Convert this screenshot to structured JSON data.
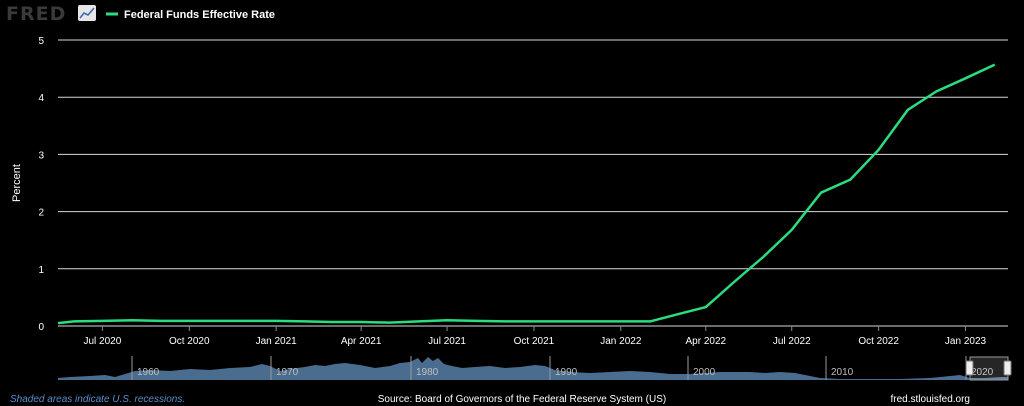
{
  "header": {
    "logo_text": "FRED",
    "logo_icon": "chart-line-icon"
  },
  "legend": {
    "series_name": "Federal Funds Effective Rate"
  },
  "footer": {
    "recession_note": "Shaded areas indicate U.S. recessions.",
    "source": "Source: Board of Governors of the Federal Reserve System (US)",
    "site": "fred.stlouisfed.org"
  },
  "colors": {
    "background": "#000000",
    "series": "#2bdd7e",
    "grid": "#ffffff",
    "navigator_fill": "#4a6d8f",
    "footer_note": "#5b8ec8"
  },
  "navigator": {
    "decade_labels": [
      "1960",
      "1970",
      "1980",
      "1990",
      "2000",
      "2010",
      "2020"
    ]
  },
  "chart_data": {
    "type": "line",
    "title": "",
    "xlabel": "",
    "ylabel": "Percent",
    "ylim": [
      0,
      5
    ],
    "yticks": [
      0,
      1,
      2,
      3,
      4,
      5
    ],
    "xlim": [
      "2020-05-15",
      "2023-02-15"
    ],
    "xticks": [
      {
        "date": "2020-07-01",
        "label": "Jul 2020"
      },
      {
        "date": "2020-10-01",
        "label": "Oct 2020"
      },
      {
        "date": "2021-01-01",
        "label": "Jan 2021"
      },
      {
        "date": "2021-04-01",
        "label": "Apr 2021"
      },
      {
        "date": "2021-07-01",
        "label": "Jul 2021"
      },
      {
        "date": "2021-10-01",
        "label": "Oct 2021"
      },
      {
        "date": "2022-01-01",
        "label": "Jan 2022"
      },
      {
        "date": "2022-04-01",
        "label": "Apr 2022"
      },
      {
        "date": "2022-07-01",
        "label": "Jul 2022"
      },
      {
        "date": "2022-10-01",
        "label": "Oct 2022"
      },
      {
        "date": "2023-01-01",
        "label": "Jan 2023"
      }
    ],
    "grid": true,
    "legend_position": "top-left",
    "series": [
      {
        "name": "Federal Funds Effective Rate",
        "x": [
          "2020-05-01",
          "2020-06-01",
          "2020-07-01",
          "2020-08-01",
          "2020-09-01",
          "2020-10-01",
          "2020-11-01",
          "2020-12-01",
          "2021-01-01",
          "2021-02-01",
          "2021-03-01",
          "2021-04-01",
          "2021-05-01",
          "2021-06-01",
          "2021-07-01",
          "2021-08-01",
          "2021-09-01",
          "2021-10-01",
          "2021-11-01",
          "2021-12-01",
          "2022-01-01",
          "2022-02-01",
          "2022-03-01",
          "2022-04-01",
          "2022-05-01",
          "2022-06-01",
          "2022-07-01",
          "2022-08-01",
          "2022-09-01",
          "2022-10-01",
          "2022-11-01",
          "2022-12-01",
          "2023-01-01",
          "2023-02-01"
        ],
        "values": [
          0.05,
          0.08,
          0.09,
          0.1,
          0.09,
          0.09,
          0.09,
          0.09,
          0.09,
          0.08,
          0.07,
          0.07,
          0.06,
          0.08,
          0.1,
          0.09,
          0.08,
          0.08,
          0.08,
          0.08,
          0.08,
          0.08,
          0.2,
          0.33,
          0.77,
          1.21,
          1.68,
          2.33,
          2.56,
          3.08,
          3.78,
          4.1,
          4.33,
          4.57
        ]
      }
    ]
  }
}
